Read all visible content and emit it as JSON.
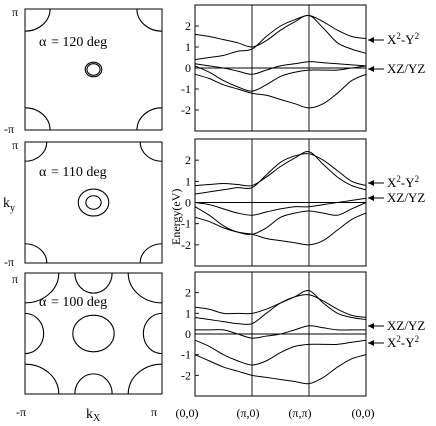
{
  "figure": {
    "left_axis_label": "k",
    "left_axis_sub": "y",
    "bottom_axis_label": "k",
    "bottom_axis_sub": "X",
    "pi_label": "π",
    "neg_pi_label": "-π",
    "energy_label": "Energy(eV)",
    "k_path_ticks": [
      "(0,0)",
      "(π,0)",
      "(π,π)",
      "(0,0)"
    ]
  },
  "chart_data": [
    {
      "type": "fermi-surface-contour",
      "title": "α = 120 deg",
      "alpha_symbol": "α",
      "alpha_text": "= 120 deg",
      "xlim": [
        -3.1416,
        3.1416
      ],
      "ylim": [
        -3.1416,
        3.1416
      ],
      "center_pockets": [
        {
          "kx": 0,
          "ky": 0,
          "radius": 0.38
        },
        {
          "kx": 0,
          "ky": 0,
          "radius": 0.3
        }
      ],
      "corner_pocket_radius": 1.15,
      "edge_pocket_radius": 0
    },
    {
      "type": "line",
      "title": "",
      "xlabel": "",
      "ylabel": "",
      "ylim": [
        -3,
        3
      ],
      "yticks": [
        2,
        1,
        0,
        -1,
        -2
      ],
      "x_ticks": [
        "(0,0)",
        "(π,0)",
        "(π,π)",
        "(0,0)"
      ],
      "x_positions": [
        0,
        1,
        2,
        3
      ],
      "annotations": [
        {
          "text": "X",
          "sup": "2",
          "text2": "-Y",
          "sup2": "2",
          "y": 1.3
        },
        {
          "text": "XZ/YZ",
          "sup": "",
          "text2": "",
          "sup2": "",
          "y": 0.1
        }
      ],
      "series": [
        {
          "x": [
            0,
            0.25,
            0.5,
            0.75,
            1,
            1.25,
            1.5,
            1.75,
            2,
            2.25,
            2.5,
            2.75,
            3
          ],
          "y": [
            1.6,
            1.5,
            1.35,
            1.2,
            1.0,
            1.3,
            1.8,
            2.2,
            2.5,
            1.9,
            1.2,
            0.9,
            0.7
          ]
        },
        {
          "x": [
            0,
            0.25,
            0.5,
            0.75,
            1,
            1.25,
            1.5,
            1.75,
            2,
            2.25,
            2.5,
            2.75,
            3
          ],
          "y": [
            0.4,
            0.5,
            0.6,
            0.8,
            0.9,
            1.5,
            2.0,
            2.3,
            2.5,
            2.2,
            1.8,
            1.5,
            1.4
          ]
        },
        {
          "x": [
            0,
            0.25,
            0.5,
            0.75,
            1,
            1.25,
            1.5,
            1.75,
            2,
            2.25,
            2.5,
            2.75,
            3
          ],
          "y": [
            0.2,
            0.1,
            0.0,
            -0.15,
            -0.3,
            -0.1,
            0.1,
            0.2,
            0.3,
            0.25,
            0.2,
            0.15,
            0.1
          ]
        },
        {
          "x": [
            0,
            0.25,
            0.5,
            0.75,
            1,
            1.25,
            1.5,
            1.75,
            2,
            2.25,
            2.5,
            2.75,
            3
          ],
          "y": [
            0.1,
            -0.2,
            -0.6,
            -0.9,
            -1.1,
            -0.8,
            -0.4,
            -0.2,
            -0.1,
            -0.1,
            -0.1,
            0.0,
            0.1
          ]
        },
        {
          "x": [
            0,
            0.25,
            0.5,
            0.75,
            1,
            1.25,
            1.5,
            1.75,
            2,
            2.25,
            2.5,
            2.75,
            3
          ],
          "y": [
            -0.3,
            -0.5,
            -0.8,
            -1.0,
            -1.2,
            -1.3,
            -1.5,
            -1.7,
            -1.9,
            -1.7,
            -1.2,
            -0.6,
            -0.3
          ]
        }
      ]
    },
    {
      "type": "fermi-surface-contour",
      "title": "α = 110 deg",
      "alpha_symbol": "α",
      "alpha_text": "= 110 deg",
      "xlim": [
        -3.1416,
        3.1416
      ],
      "ylim": [
        -3.1416,
        3.1416
      ],
      "center_pockets": [
        {
          "kx": 0,
          "ky": 0,
          "radius": 0.7
        },
        {
          "kx": 0,
          "ky": 0,
          "radius": 0.35
        }
      ],
      "corner_pocket_radius": 1.0,
      "edge_pocket_radius": 0
    },
    {
      "type": "line",
      "title": "",
      "xlabel": "",
      "ylabel": "",
      "ylim": [
        -3,
        3
      ],
      "yticks": [
        2,
        1,
        0,
        -1,
        -2
      ],
      "x_ticks": [
        "(0,0)",
        "(π,0)",
        "(π,π)",
        "(0,0)"
      ],
      "x_positions": [
        0,
        1,
        2,
        3
      ],
      "annotations": [
        {
          "text": "X",
          "sup": "2",
          "text2": "-Y",
          "sup2": "2",
          "y": 0.6
        },
        {
          "text": "XZ/YZ",
          "sup": "",
          "text2": "",
          "sup2": "",
          "y": 0.0
        }
      ],
      "series": [
        {
          "x": [
            0,
            0.25,
            0.5,
            0.75,
            1,
            1.25,
            1.5,
            1.75,
            2,
            2.25,
            2.5,
            2.75,
            3
          ],
          "y": [
            0.8,
            0.85,
            0.9,
            0.85,
            0.8,
            1.2,
            1.7,
            2.1,
            2.4,
            1.8,
            1.2,
            0.8,
            0.6
          ]
        },
        {
          "x": [
            0,
            0.25,
            0.5,
            0.75,
            1,
            1.25,
            1.5,
            1.75,
            2,
            2.25,
            2.5,
            2.75,
            3
          ],
          "y": [
            0.4,
            0.5,
            0.6,
            0.7,
            0.7,
            1.3,
            1.9,
            2.2,
            2.3,
            2.0,
            1.5,
            1.0,
            0.8
          ]
        },
        {
          "x": [
            0,
            0.25,
            0.5,
            0.75,
            1,
            1.25,
            1.5,
            1.75,
            2,
            2.25,
            2.5,
            2.75,
            3
          ],
          "y": [
            0.0,
            -0.1,
            -0.3,
            -0.5,
            -0.6,
            -0.45,
            -0.3,
            -0.2,
            -0.2,
            -0.1,
            0.0,
            0.1,
            0.2
          ]
        },
        {
          "x": [
            0,
            0.25,
            0.5,
            0.75,
            1,
            1.25,
            1.5,
            1.75,
            2,
            2.25,
            2.5,
            2.75,
            3
          ],
          "y": [
            -0.2,
            -0.6,
            -1.1,
            -1.4,
            -1.5,
            -1.2,
            -0.7,
            -0.5,
            -0.4,
            -0.5,
            -0.6,
            -0.3,
            0.0
          ]
        },
        {
          "x": [
            0,
            0.25,
            0.5,
            0.75,
            1,
            1.25,
            1.5,
            1.75,
            2,
            2.25,
            2.5,
            2.75,
            3
          ],
          "y": [
            -0.7,
            -0.9,
            -1.2,
            -1.4,
            -1.5,
            -1.7,
            -1.8,
            -1.9,
            -2.0,
            -1.8,
            -1.3,
            -0.8,
            -0.5
          ]
        }
      ]
    },
    {
      "type": "fermi-surface-contour",
      "title": "α = 100 deg",
      "alpha_symbol": "α",
      "alpha_text": "= 100 deg",
      "xlim": [
        -3.1416,
        3.1416
      ],
      "ylim": [
        -3.1416,
        3.1416
      ],
      "center_pockets": [
        {
          "kx": 0,
          "ky": 0,
          "radius": 0.95
        }
      ],
      "corner_pocket_radius": 1.55,
      "edge_pocket_radius": 0.95
    },
    {
      "type": "line",
      "title": "",
      "xlabel": "",
      "ylabel": "",
      "ylim": [
        -3,
        3
      ],
      "yticks": [
        2,
        1,
        0,
        -1,
        -2
      ],
      "x_ticks": [
        "(0,0)",
        "(π,0)",
        "(π,π)",
        "(0,0)"
      ],
      "x_positions": [
        0,
        1,
        2,
        3
      ],
      "annotations": [
        {
          "text": "XZ/YZ",
          "sup": "",
          "text2": "",
          "sup2": "",
          "y": 0.2
        },
        {
          "text": "X",
          "sup": "2",
          "text2": "-Y",
          "sup2": "2",
          "y": -0.3
        }
      ],
      "series": [
        {
          "x": [
            0,
            0.25,
            0.5,
            0.75,
            1,
            1.25,
            1.5,
            1.75,
            2,
            2.25,
            2.5,
            2.75,
            3
          ],
          "y": [
            1.3,
            1.2,
            1.0,
            1.0,
            1.0,
            1.2,
            1.5,
            1.8,
            2.1,
            1.5,
            1.0,
            0.8,
            0.7
          ]
        },
        {
          "x": [
            0,
            0.25,
            0.5,
            0.75,
            1,
            1.25,
            1.5,
            1.75,
            2,
            2.25,
            2.5,
            2.75,
            3
          ],
          "y": [
            0.8,
            0.7,
            0.6,
            0.5,
            0.5,
            1.0,
            1.5,
            1.8,
            1.9,
            1.6,
            1.2,
            0.9,
            0.8
          ]
        },
        {
          "x": [
            0,
            0.25,
            0.5,
            0.75,
            1,
            1.25,
            1.5,
            1.75,
            2,
            2.25,
            2.5,
            2.75,
            3
          ],
          "y": [
            0.2,
            0.2,
            0.2,
            0.0,
            -0.2,
            -0.1,
            0.0,
            0.2,
            0.4,
            0.3,
            0.2,
            0.2,
            0.2
          ]
        },
        {
          "x": [
            0,
            0.25,
            0.5,
            0.75,
            1,
            1.25,
            1.5,
            1.75,
            2,
            2.25,
            2.5,
            2.75,
            3
          ],
          "y": [
            -0.3,
            -0.6,
            -1.0,
            -1.3,
            -1.5,
            -1.3,
            -0.9,
            -0.6,
            -0.5,
            -0.5,
            -0.5,
            -0.4,
            -0.3
          ]
        },
        {
          "x": [
            0,
            0.25,
            0.5,
            0.75,
            1,
            1.25,
            1.5,
            1.75,
            2,
            2.25,
            2.5,
            2.75,
            3
          ],
          "y": [
            -1.0,
            -1.3,
            -1.6,
            -1.8,
            -2.0,
            -2.1,
            -2.2,
            -2.3,
            -2.4,
            -2.1,
            -1.6,
            -1.2,
            -1.0
          ]
        }
      ]
    }
  ]
}
